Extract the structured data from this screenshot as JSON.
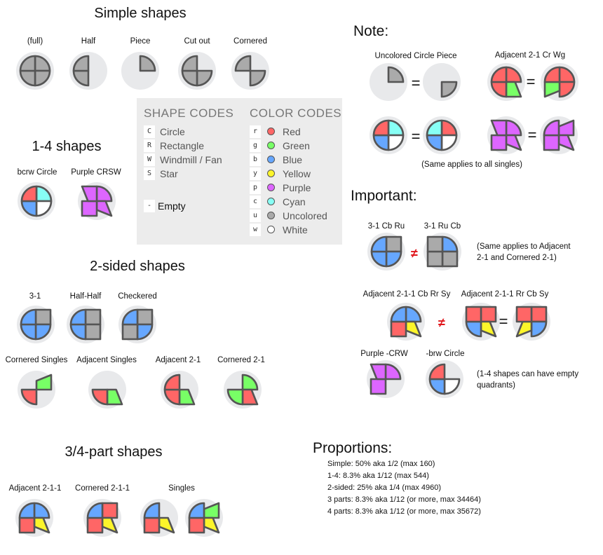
{
  "colors": {
    "r": "#ff6666",
    "g": "#78ff66",
    "b": "#66a7ff",
    "y": "#fcf52a",
    "p": "#dd66ff",
    "c": "#87fff5",
    "u": "#aaaaaa",
    "w": "#ffffff",
    "stroke": "#555555",
    "background": "#e8e9eb",
    "not_equal": "#e0161b"
  },
  "simple": {
    "title": "Simple shapes",
    "items": [
      {
        "label": "(full)",
        "quads": [
          "Cu",
          "Cu",
          "Cu",
          "Cu"
        ]
      },
      {
        "label": "Half",
        "quads": [
          "--",
          "--",
          "Cu",
          "Cu"
        ]
      },
      {
        "label": "Piece",
        "quads": [
          "Cu",
          "--",
          "--",
          "--"
        ]
      },
      {
        "label": "Cut out",
        "quads": [
          "--",
          "Cu",
          "Cu",
          "Cu"
        ]
      },
      {
        "label": "Cornered",
        "quads": [
          "--",
          "Cu",
          "--",
          "Cu"
        ]
      }
    ]
  },
  "one_four": {
    "title": "1-4 shapes",
    "items": [
      {
        "label": "bcrw Circle",
        "quads": [
          "Cc",
          "Cw",
          "Cb",
          "Cr"
        ]
      },
      {
        "label": "Purple CRSW",
        "quads": [
          "Cp",
          "Sp",
          "Rp",
          "Wp"
        ]
      }
    ]
  },
  "codes": {
    "shape_header": "SHAPE CODES",
    "shapes": [
      {
        "code": "C",
        "name": "Circle"
      },
      {
        "code": "R",
        "name": "Rectangle"
      },
      {
        "code": "W",
        "name": "Windmill / Fan"
      },
      {
        "code": "S",
        "name": "Star"
      }
    ],
    "empty": {
      "code": "-",
      "name": "Empty"
    },
    "color_header": "COLOR CODES",
    "colors": [
      {
        "code": "r",
        "name": "Red",
        "color": "#ff6666"
      },
      {
        "code": "g",
        "name": "Green",
        "color": "#78ff66"
      },
      {
        "code": "b",
        "name": "Blue",
        "color": "#66a7ff"
      },
      {
        "code": "y",
        "name": "Yellow",
        "color": "#fcf52a"
      },
      {
        "code": "p",
        "name": "Purple",
        "color": "#dd66ff"
      },
      {
        "code": "c",
        "name": "Cyan",
        "color": "#87fff5"
      },
      {
        "code": "u",
        "name": "Uncolored",
        "color": "#aaaaaa"
      },
      {
        "code": "w",
        "name": "White",
        "color": "#ffffff"
      }
    ]
  },
  "two_sided": {
    "title": "2-sided shapes",
    "items": [
      {
        "label": "3-1",
        "quads": [
          "Ru",
          "Cb",
          "Cb",
          "Cb"
        ]
      },
      {
        "label": "Half-Half",
        "quads": [
          "Ru",
          "Ru",
          "Cb",
          "Cb"
        ]
      },
      {
        "label": "Checkered",
        "quads": [
          "Ru",
          "Cb",
          "Ru",
          "Cb"
        ]
      },
      {
        "label": "Cornered Singles",
        "quads": [
          "Wg",
          "--",
          "Cr",
          "--"
        ]
      },
      {
        "label": "Adjacent Singles",
        "quads": [
          "--",
          "Wg",
          "Cr",
          "--"
        ]
      },
      {
        "label": "Adjacent 2-1",
        "quads": [
          "--",
          "Wg",
          "Cr",
          "Cr"
        ]
      },
      {
        "label": "Cornered 2-1",
        "quads": [
          "Cg",
          "Wr",
          "Cg",
          "--"
        ]
      }
    ]
  },
  "parts": {
    "title": "3/4-part shapes",
    "items": [
      {
        "label": "Adjacent 2-1-1",
        "quads": [
          "Cb",
          "Sy",
          "Rr",
          "Cb"
        ]
      },
      {
        "label": "Cornered 2-1-1",
        "quads": [
          "Rr",
          "Sy",
          "Rr",
          "Cb"
        ]
      },
      {
        "label": "Singles",
        "quads": [
          "--",
          "Sy",
          "Rr",
          "Cb"
        ]
      },
      {
        "label": "",
        "quads": [
          "Wg",
          "Sy",
          "Rr",
          "Cb"
        ]
      }
    ]
  },
  "note": {
    "title": "Note:",
    "labels": [
      "Uncolored Circle Piece",
      "Adjacent 2-1 Cr Wg"
    ],
    "equals": "=",
    "shapes": [
      {
        "quads": [
          "Cu",
          "--",
          "--",
          "--"
        ]
      },
      {
        "quads": [
          "--",
          "Cu",
          "--",
          "--"
        ]
      },
      {
        "quads": [
          "Cr",
          "Wg",
          "Cr",
          "Cr"
        ]
      },
      {
        "quads": [
          "Cr",
          "Cr",
          "Wg",
          "Cr"
        ]
      },
      {
        "quads": [
          "Cc",
          "Cw",
          "Cb",
          "Cr"
        ]
      },
      {
        "quads": [
          "Cr",
          "Cw",
          "Cb",
          "Cc"
        ]
      },
      {
        "quads": [
          "Cp",
          "Sp",
          "Rp",
          "Wp"
        ]
      },
      {
        "quads": [
          "Wp",
          "Sp",
          "Rp",
          "Cp"
        ]
      }
    ],
    "footnote": "(Same applies to all singles)"
  },
  "important": {
    "title": "Important:",
    "not_equal": "≠",
    "equals": "=",
    "labels": [
      "3-1 Cb Ru",
      "3-1 Ru Cb",
      "Adjacent 2-1-1 Cb Rr Sy",
      "Adjacent 2-1-1 Rr Cb Sy",
      "Purple -CRW",
      "-brw Circle"
    ],
    "shapes": [
      {
        "quads": [
          "Ru",
          "Cb",
          "Cb",
          "Cb"
        ]
      },
      {
        "quads": [
          "Cb",
          "Ru",
          "Ru",
          "Ru"
        ]
      },
      {
        "quads": [
          "Cb",
          "Sy",
          "Rr",
          "Cb"
        ]
      },
      {
        "quads": [
          "Rr",
          "Sy",
          "Cb",
          "Rr"
        ]
      },
      {
        "quads": [
          "Rr",
          "Cb",
          "Sy",
          "Rr"
        ]
      },
      {
        "quads": [
          "Cp",
          "--",
          "Rp",
          "Wp"
        ]
      },
      {
        "quads": [
          "--",
          "Cw",
          "Cb",
          "Cr"
        ]
      }
    ],
    "note1": [
      "(Same applies to Adjacent",
      "2-1 and Cornered 2-1)"
    ],
    "note2": [
      "(1-4 shapes can have empty",
      "quadrants)"
    ]
  },
  "proportions": {
    "title": "Proportions:",
    "lines": [
      "Simple: 50% aka 1/2 (max 160)",
      "1-4: 8.3% aka 1/12 (max 544)",
      "2-sided: 25% aka 1/4 (max 4960)",
      "3 parts: 8.3% aka 1/12 (or more, max 34464)",
      "4 parts: 8.3% aka 1/12 (or more, max 35672)"
    ]
  }
}
